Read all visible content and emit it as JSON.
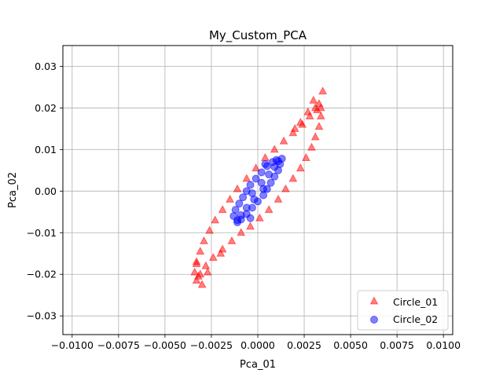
{
  "chart_data": {
    "type": "scatter",
    "title": "My_Custom_PCA",
    "xlabel": "Pca_01",
    "ylabel": "Pca_02",
    "xlim": [
      -0.0105,
      0.0105
    ],
    "ylim": [
      -0.0345,
      0.035
    ],
    "x_ticks": [
      -0.01,
      -0.0075,
      -0.005,
      -0.0025,
      0.0,
      0.0025,
      0.005,
      0.0075,
      0.01
    ],
    "x_tick_labels": [
      "−0.0100",
      "−0.0075",
      "−0.0050",
      "−0.0025",
      "0.0000",
      "0.0025",
      "0.0050",
      "0.0075",
      "0.0100"
    ],
    "y_ticks": [
      -0.03,
      -0.02,
      -0.01,
      0.0,
      0.01,
      0.02,
      0.03
    ],
    "y_tick_labels": [
      "−0.03",
      "−0.02",
      "−0.01",
      "0.00",
      "0.01",
      "0.02",
      "0.03"
    ],
    "grid": true,
    "legend_position": "lower-right",
    "series": [
      {
        "name": "Circle_01",
        "marker": "triangle",
        "color": "#ff0000",
        "points": [
          [
            0.0034,
            0.02
          ],
          [
            0.0034,
            0.018
          ],
          [
            0.0033,
            0.0155
          ],
          [
            0.0031,
            0.013
          ],
          [
            0.0029,
            0.0105
          ],
          [
            0.0026,
            0.008
          ],
          [
            0.0023,
            0.0055
          ],
          [
            0.0019,
            0.003
          ],
          [
            0.0015,
            0.0005
          ],
          [
            0.0011,
            -0.002
          ],
          [
            0.0006,
            -0.0045
          ],
          [
            0.0001,
            -0.0065
          ],
          [
            -0.0004,
            -0.0085
          ],
          [
            -0.0009,
            -0.01
          ],
          [
            -0.0014,
            -0.012
          ],
          [
            -0.0019,
            -0.014
          ],
          [
            -0.0024,
            -0.016
          ],
          [
            -0.0028,
            -0.018
          ],
          [
            -0.0031,
            -0.02
          ],
          [
            -0.0033,
            -0.0215
          ],
          [
            -0.0034,
            -0.0195
          ],
          [
            -0.0033,
            -0.017
          ],
          [
            -0.0031,
            -0.0145
          ],
          [
            -0.0029,
            -0.012
          ],
          [
            -0.0026,
            -0.0095
          ],
          [
            -0.0023,
            -0.007
          ],
          [
            -0.0019,
            -0.0045
          ],
          [
            -0.0015,
            -0.002
          ],
          [
            -0.0011,
            0.0005
          ],
          [
            -0.0006,
            0.003
          ],
          [
            -0.0001,
            0.0055
          ],
          [
            0.0004,
            0.008
          ],
          [
            0.0009,
            0.01
          ],
          [
            0.0014,
            0.012
          ],
          [
            0.0019,
            0.014
          ],
          [
            0.0024,
            0.016
          ],
          [
            0.0028,
            0.018
          ],
          [
            0.0031,
            0.02
          ],
          [
            0.0033,
            0.021
          ],
          [
            0.0035,
            0.024
          ],
          [
            0.0023,
            0.0165
          ],
          [
            -0.0033,
            -0.0175
          ],
          [
            0.003,
            0.0218
          ],
          [
            -0.003,
            -0.0225
          ],
          [
            0.0032,
            0.0195
          ],
          [
            -0.0032,
            -0.0205
          ],
          [
            0.0027,
            0.019
          ],
          [
            -0.0027,
            -0.0195
          ],
          [
            0.002,
            0.015
          ],
          [
            -0.002,
            -0.015
          ]
        ]
      },
      {
        "name": "Circle_02",
        "marker": "circle",
        "color": "#0000ff",
        "points": [
          [
            0.0013,
            0.0078
          ],
          [
            0.0012,
            0.0065
          ],
          [
            0.0011,
            0.005
          ],
          [
            0.0009,
            0.0035
          ],
          [
            0.0007,
            0.002
          ],
          [
            0.0005,
            0.0005
          ],
          [
            0.0003,
            -0.001
          ],
          [
            0.0,
            -0.0025
          ],
          [
            -0.0003,
            -0.004
          ],
          [
            -0.0006,
            -0.0055
          ],
          [
            -0.0009,
            -0.0068
          ],
          [
            -0.0011,
            -0.0075
          ],
          [
            -0.0013,
            -0.006
          ],
          [
            -0.0012,
            -0.0045
          ],
          [
            -0.001,
            -0.003
          ],
          [
            -0.0008,
            -0.0015
          ],
          [
            -0.0006,
            0.0
          ],
          [
            -0.0004,
            0.0015
          ],
          [
            -0.0001,
            0.003
          ],
          [
            0.0002,
            0.0045
          ],
          [
            0.0005,
            0.006
          ],
          [
            0.0008,
            0.007
          ],
          [
            0.001,
            0.0075
          ],
          [
            0.0004,
            0.0065
          ],
          [
            -0.0004,
            -0.0065
          ],
          [
            0.0006,
            0.004
          ],
          [
            -0.0006,
            -0.004
          ],
          [
            0.0002,
            0.002
          ],
          [
            -0.0002,
            -0.002
          ],
          [
            0.0009,
            0.0058
          ],
          [
            -0.0009,
            -0.0058
          ],
          [
            0.0011,
            0.0072
          ],
          [
            -0.0011,
            -0.007
          ],
          [
            0.0003,
            0.0005
          ],
          [
            -0.0003,
            -0.0005
          ]
        ]
      }
    ]
  }
}
